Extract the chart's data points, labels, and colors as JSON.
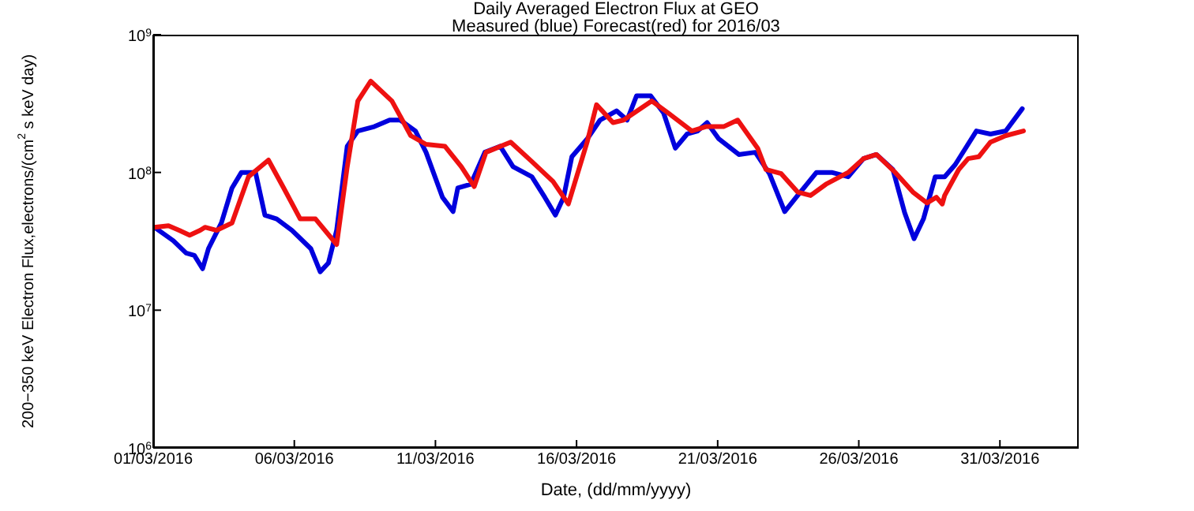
{
  "chart_data": {
    "type": "line",
    "title": "Daily Averaged Electron Flux at GEO",
    "subtitle": "Measured (blue) Forecast(red) for 2016/03",
    "xlabel": "Date, (dd/mm/yyyy)",
    "ylabel": "200−350 keV Electron Flux,electrons/(cm$^{2}$ s keV day)",
    "log": "y",
    "xlim": [
      "2016-03-01",
      "2016-04-02T19:00"
    ],
    "xticks": [
      {
        "value": "2016-03-01",
        "label": "01/03/2016"
      },
      {
        "value": "2016-03-06",
        "label": "06/03/2016"
      },
      {
        "value": "2016-03-11",
        "label": "11/03/2016"
      },
      {
        "value": "2016-03-16",
        "label": "16/03/2016"
      },
      {
        "value": "2016-03-21",
        "label": "21/03/2016"
      },
      {
        "value": "2016-03-26",
        "label": "26/03/2016"
      },
      {
        "value": "2016-03-31",
        "label": "31/03/2016"
      }
    ],
    "ylim": [
      1000000,
      1000000000
    ],
    "yticks": [
      {
        "value": 1000000,
        "label": "10$^{6}$"
      },
      {
        "value": 10000000,
        "label": "10$^{7}$"
      },
      {
        "value": 100000000,
        "label": "10$^{8}$"
      },
      {
        "value": 1000000000,
        "label": "10$^{9}$"
      }
    ],
    "series": [
      {
        "color": "#0000dd",
        "x": [
          "2016-03-01T01:00",
          "2016-03-01T17:00",
          "2016-03-02T04:00",
          "2016-03-02T11:00",
          "2016-03-02T18:00",
          "2016-03-02T23:00",
          "2016-03-03T10:00",
          "2016-03-03T19:00",
          "2016-03-04T03:00",
          "2016-03-04T15:00",
          "2016-03-04T23:00",
          "2016-03-05T09:00",
          "2016-03-05T22:00",
          "2016-03-06T14:00",
          "2016-03-06T22:00",
          "2016-03-07T05:00",
          "2016-03-07T12:00",
          "2016-03-07T21:00",
          "2016-03-08T06:00",
          "2016-03-08T20:00",
          "2016-03-09T09:00",
          "2016-03-09T18:00",
          "2016-03-10T07:00",
          "2016-03-10T16:00",
          "2016-03-11T06:00",
          "2016-03-11T15:00",
          "2016-03-11T19:00",
          "2016-03-12T06:00",
          "2016-03-12T18:00",
          "2016-03-13T07:00",
          "2016-03-13T18:00",
          "2016-03-14T10:00",
          "2016-03-14T21:00",
          "2016-03-15T06:00",
          "2016-03-15T13:00",
          "2016-03-15T20:00",
          "2016-03-16T09:00",
          "2016-03-16T20:00",
          "2016-03-17T10:00",
          "2016-03-17T19:00",
          "2016-03-18T03:00",
          "2016-03-18T15:00",
          "2016-03-19T02:00",
          "2016-03-19T12:00",
          "2016-03-19T22:00",
          "2016-03-20T07:00",
          "2016-03-20T15:00",
          "2016-03-21T01:00",
          "2016-03-21T18:00",
          "2016-03-22T08:00",
          "2016-03-22T20:00",
          "2016-03-23T09:00",
          "2016-03-23T20:00",
          "2016-03-24T12:00",
          "2016-03-25T01:00",
          "2016-03-25T15:00",
          "2016-03-26T04:00",
          "2016-03-26T15:00",
          "2016-03-27T05:00",
          "2016-03-27T15:00",
          "2016-03-27T23:00",
          "2016-03-28T07:00",
          "2016-03-28T17:00",
          "2016-03-29T01:00",
          "2016-03-29T10:00",
          "2016-03-30T04:00",
          "2016-03-30T16:00",
          "2016-03-31T05:00",
          "2016-03-31T19:00"
        ],
        "values": [
          40000000,
          32000000,
          26000000,
          25000000,
          20000000,
          28000000,
          43000000,
          77000000,
          100000000,
          100000000,
          49000000,
          46000000,
          38000000,
          28000000,
          19000000,
          22000000,
          38000000,
          155000000,
          200000000,
          215000000,
          240000000,
          240000000,
          200000000,
          140000000,
          66000000,
          52000000,
          77000000,
          82000000,
          140000000,
          155000000,
          110000000,
          93000000,
          66000000,
          49000000,
          66000000,
          130000000,
          175000000,
          240000000,
          280000000,
          240000000,
          360000000,
          360000000,
          270000000,
          150000000,
          190000000,
          200000000,
          230000000,
          175000000,
          135000000,
          140000000,
          98000000,
          52000000,
          68000000,
          100000000,
          100000000,
          93000000,
          126000000,
          135000000,
          105000000,
          51000000,
          33000000,
          46000000,
          93000000,
          93000000,
          114000000,
          200000000,
          190000000,
          200000000,
          290000000
        ]
      },
      {
        "color": "#ee1111",
        "x": [
          "2016-03-01T01:00",
          "2016-03-01T13:00",
          "2016-03-01T22:00",
          "2016-03-02T07:00",
          "2016-03-02T16:00",
          "2016-03-02T20:00",
          "2016-03-03T06:00",
          "2016-03-03T19:00",
          "2016-03-04T09:00",
          "2016-03-05T02:00",
          "2016-03-05T15:00",
          "2016-03-06T05:00",
          "2016-03-06T18:00",
          "2016-03-07T12:00",
          "2016-03-07T21:00",
          "2016-03-08T06:00",
          "2016-03-08T17:00",
          "2016-03-09T11:00",
          "2016-03-10T03:00",
          "2016-03-10T16:00",
          "2016-03-11T08:00",
          "2016-03-11T22:00",
          "2016-03-12T09:00",
          "2016-03-12T19:00",
          "2016-03-13T16:00",
          "2016-03-14T10:00",
          "2016-03-15T04:00",
          "2016-03-15T17:00",
          "2016-03-16T09:00",
          "2016-03-16T17:00",
          "2016-03-17T07:00",
          "2016-03-17T16:00",
          "2016-03-18T16:00",
          "2016-03-19T06:00",
          "2016-03-20T02:00",
          "2016-03-20T14:00",
          "2016-03-21T05:00",
          "2016-03-21T17:00",
          "2016-03-22T10:00",
          "2016-03-22T17:00",
          "2016-03-23T06:00",
          "2016-03-23T20:00",
          "2016-03-24T07:00",
          "2016-03-24T20:00",
          "2016-03-25T15:00",
          "2016-03-26T04:00",
          "2016-03-26T15:00",
          "2016-03-27T07:00",
          "2016-03-27T22:00",
          "2016-03-28T10:00",
          "2016-03-28T18:00",
          "2016-03-28T23:00",
          "2016-03-29T01:00",
          "2016-03-29T13:00",
          "2016-03-29T21:00",
          "2016-03-30T06:00",
          "2016-03-30T16:00",
          "2016-03-31T05:00",
          "2016-03-31T20:00"
        ],
        "values": [
          40000000,
          41000000,
          38000000,
          35000000,
          38000000,
          40000000,
          38000000,
          43000000,
          93000000,
          123000000,
          77000000,
          46000000,
          46000000,
          30000000,
          110000000,
          330000000,
          460000000,
          330000000,
          185000000,
          160000000,
          155000000,
          110000000,
          79000000,
          140000000,
          166000000,
          120000000,
          86000000,
          59000000,
          166000000,
          310000000,
          230000000,
          240000000,
          330000000,
          270000000,
          200000000,
          215000000,
          215000000,
          240000000,
          150000000,
          105000000,
          98000000,
          72000000,
          68000000,
          82000000,
          100000000,
          126000000,
          135000000,
          100000000,
          72000000,
          60000000,
          66000000,
          59000000,
          68000000,
          105000000,
          126000000,
          130000000,
          166000000,
          185000000,
          200000000
        ]
      }
    ]
  }
}
